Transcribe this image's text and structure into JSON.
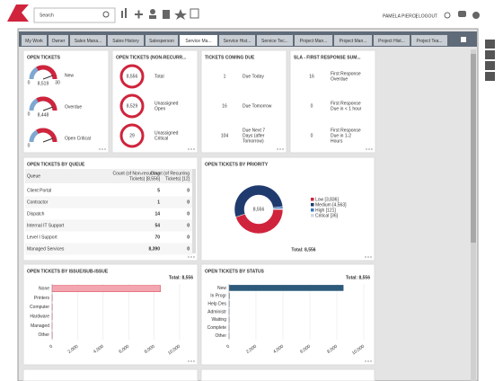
{
  "header": {
    "search_placeholder": "Search",
    "user": "PAMELA PIERCE",
    "separator": "|",
    "logout": "LOGOUT"
  },
  "tabs": [
    "My Work",
    "Owner",
    "Sales Mana...",
    "Sales History",
    "Salesperson",
    "Service Ma...",
    "Service Hist...",
    "Service Tec...",
    "Project Man...",
    "Project Man...",
    "Project Hist...",
    "Project Tea..."
  ],
  "active_tab": 5,
  "open_tickets": {
    "title": "OPEN TICKETS",
    "gauges": [
      {
        "label": [
          "New"
        ],
        "value": "8,519",
        "scale": [
          "0",
          "30"
        ]
      },
      {
        "label": [
          "Overdue"
        ],
        "value": "8,448",
        "scale": [
          "0"
        ]
      },
      {
        "label": [
          "Open Critical"
        ],
        "scale": [
          "0"
        ]
      }
    ]
  },
  "non_recurring": {
    "title": "OPEN TICKETS (NON-RECURR...",
    "items": [
      {
        "value": "8,556",
        "label": [
          "Total"
        ]
      },
      {
        "value": "8,529",
        "label": [
          "Unassigned",
          "Open"
        ]
      },
      {
        "value": "29",
        "label": [
          "Unassigned",
          "Critical"
        ]
      }
    ]
  },
  "coming_due": {
    "title": "TICKETS COMING DUE",
    "color": "#5b9bd5",
    "items": [
      {
        "value": "1",
        "label": [
          "Due Today"
        ]
      },
      {
        "value": "16",
        "label": [
          "Due Tomorrow"
        ]
      },
      {
        "value": "104",
        "label": [
          "Due Next 7",
          "Days (after",
          "Tomorrow)"
        ]
      }
    ]
  },
  "sla": {
    "title": "SLA - FIRST RESPONSE SUM...",
    "items": [
      {
        "value": "16",
        "label": [
          "First Response",
          "Overdue"
        ],
        "color": "#d0243c"
      },
      {
        "value": "0",
        "label": [
          "First Response",
          "Due in < 1 hour"
        ],
        "color": "#2e8b57"
      },
      {
        "value": "0",
        "label": [
          "First Response",
          "Due in 1-2",
          "Hours"
        ],
        "color": "#2e8b57"
      }
    ]
  },
  "queue": {
    "title": "OPEN TICKETS BY QUEUE",
    "columns": [
      [
        "Queue"
      ],
      [
        "Count (of Non-recurring",
        "Tickets) [8,556]"
      ],
      [
        "Count (of Recurring",
        "Tickets) [12]"
      ]
    ],
    "rows": [
      [
        "Client Portal",
        "5",
        "0"
      ],
      [
        "Contractor",
        "1",
        "0"
      ],
      [
        "Dispatch",
        "14",
        "0"
      ],
      [
        "Internal IT Support",
        "54",
        "0"
      ],
      [
        "Level I Support",
        "70",
        "0"
      ],
      [
        "Managed Services",
        "8,390",
        "0"
      ]
    ]
  },
  "priority": {
    "title": "OPEN TICKETS BY PRIORITY",
    "center": "8,556",
    "total": "Total: 8,556",
    "slices": [
      {
        "label": "Low [3,836]",
        "value": 3836,
        "color": "#d0243c"
      },
      {
        "label": "Medium [4,563]",
        "value": 4563,
        "color": "#1f3b6e"
      },
      {
        "label": "High [121]",
        "value": 121,
        "color": "#3a78c2"
      },
      {
        "label": "Critical [36]",
        "value": 36,
        "color": "#cfd8e3"
      }
    ]
  },
  "issue": {
    "title": "OPEN TICKETS BY ISSUE/SUB-ISSUE",
    "total": "Total: 8,556",
    "categories": [
      "None",
      "Printers",
      "Computer",
      "Hardware",
      "Managed",
      "Other"
    ],
    "values": [
      8500,
      10,
      15,
      12,
      5,
      14
    ],
    "xlim": [
      0,
      10000
    ],
    "xticks": [
      0,
      {
        "value": 2000,
        "label": "2,000"
      },
      {
        "value": 4000,
        "label": "4,000"
      },
      {
        "value": 6000,
        "label": "6,000"
      },
      {
        "value": 8000,
        "label": "8,000"
      },
      {
        "value": 10000,
        "label": "10,000"
      }
    ],
    "color": "#f4a6b0",
    "stroke": "#d0243c"
  },
  "status": {
    "title": "OPEN TICKETS BY STATUS",
    "total": "Total: 8,556",
    "categories": [
      "New",
      "In Progr",
      "Help Des",
      "Administr",
      "Waiting",
      "Complete",
      "Other"
    ],
    "values": [
      8480,
      30,
      20,
      6,
      10,
      5,
      5
    ],
    "xlim": [
      0,
      10000
    ],
    "xticks": [
      0,
      {
        "value": 2000,
        "label": "2,000"
      },
      {
        "value": 4000,
        "label": "4,000"
      },
      {
        "value": 6000,
        "label": "6,000"
      },
      {
        "value": 8000,
        "label": "8,000"
      },
      {
        "value": 10000,
        "label": "10,000"
      }
    ],
    "color": "#2d5a7b",
    "stroke": "#2d5a7b"
  }
}
